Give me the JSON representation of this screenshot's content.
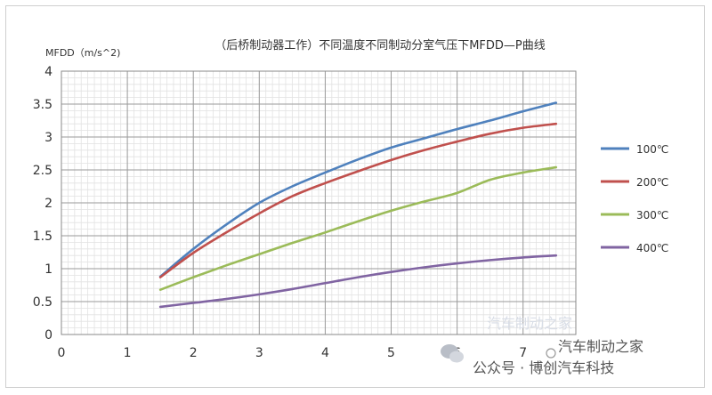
{
  "chart_data": {
    "type": "line",
    "title": "（后桥制动器工作）不同温度不同制动分室气压下MFDD—P曲线",
    "ylabel": "MFDD（m/s^2)",
    "xlabel": "",
    "xlim": [
      0,
      7.8
    ],
    "ylim": [
      0,
      4
    ],
    "x_ticks": [
      "0",
      "1",
      "2",
      "3",
      "4",
      "5",
      "6",
      "7"
    ],
    "y_ticks": [
      "0",
      "0.5",
      "1",
      "1.5",
      "2",
      "2.5",
      "3",
      "3.5",
      "4"
    ],
    "grid": true,
    "legend_position": "right",
    "series": [
      {
        "name": "100℃",
        "color": "#4f81bd",
        "points": [
          [
            1.5,
            0.88
          ],
          [
            2,
            1.3
          ],
          [
            2.5,
            1.67
          ],
          [
            3,
            2.0
          ],
          [
            3.5,
            2.25
          ],
          [
            4,
            2.46
          ],
          [
            4.5,
            2.66
          ],
          [
            5,
            2.84
          ],
          [
            5.5,
            2.98
          ],
          [
            6,
            3.12
          ],
          [
            6.5,
            3.25
          ],
          [
            7,
            3.39
          ],
          [
            7.5,
            3.52
          ]
        ]
      },
      {
        "name": "200℃",
        "color": "#c0504d",
        "points": [
          [
            1.5,
            0.87
          ],
          [
            2,
            1.24
          ],
          [
            2.5,
            1.55
          ],
          [
            3,
            1.84
          ],
          [
            3.5,
            2.1
          ],
          [
            4,
            2.3
          ],
          [
            4.5,
            2.48
          ],
          [
            5,
            2.65
          ],
          [
            5.5,
            2.8
          ],
          [
            6,
            2.93
          ],
          [
            6.5,
            3.05
          ],
          [
            7,
            3.14
          ],
          [
            7.5,
            3.2
          ]
        ]
      },
      {
        "name": "300℃",
        "color": "#9bbb59",
        "points": [
          [
            1.5,
            0.68
          ],
          [
            2,
            0.87
          ],
          [
            2.5,
            1.05
          ],
          [
            3,
            1.22
          ],
          [
            3.5,
            1.39
          ],
          [
            4,
            1.55
          ],
          [
            4.5,
            1.72
          ],
          [
            5,
            1.88
          ],
          [
            5.5,
            2.02
          ],
          [
            6,
            2.15
          ],
          [
            6.5,
            2.35
          ],
          [
            7,
            2.46
          ],
          [
            7.5,
            2.54
          ]
        ]
      },
      {
        "name": "400℃",
        "color": "#8064a2",
        "points": [
          [
            1.5,
            0.42
          ],
          [
            2,
            0.48
          ],
          [
            2.5,
            0.54
          ],
          [
            3,
            0.61
          ],
          [
            3.5,
            0.69
          ],
          [
            4,
            0.78
          ],
          [
            4.5,
            0.87
          ],
          [
            5,
            0.95
          ],
          [
            5.5,
            1.02
          ],
          [
            6,
            1.08
          ],
          [
            6.5,
            1.13
          ],
          [
            7,
            1.17
          ],
          [
            7.5,
            1.2
          ]
        ]
      }
    ]
  },
  "watermark": {
    "line1": "汽车制动之家",
    "line2": "公众号 · 博创汽车科技",
    "faint": "汽车制动之家"
  }
}
